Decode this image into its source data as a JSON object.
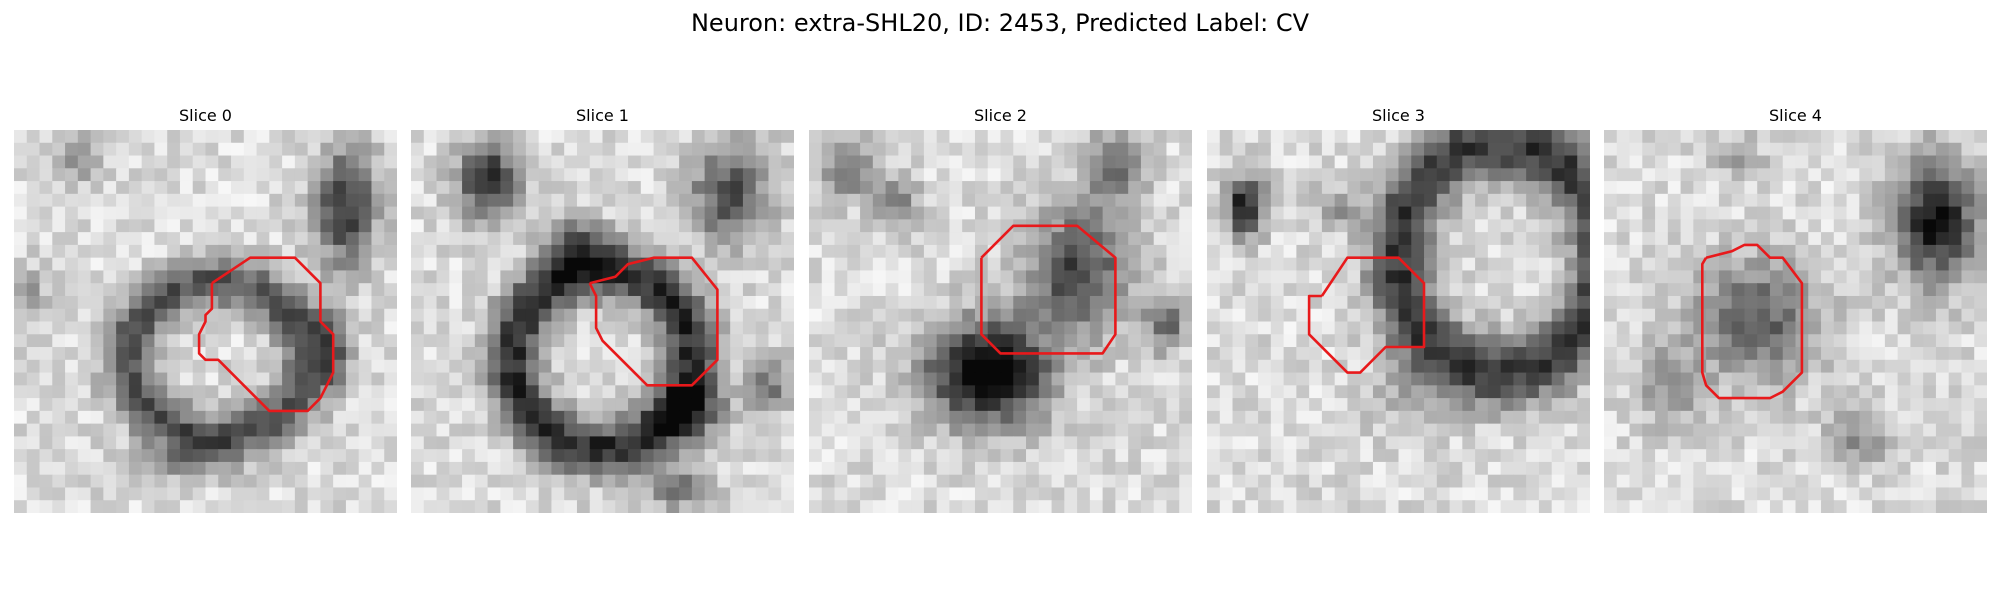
{
  "figure": {
    "title": "Neuron: extra-SHL20, ID: 2453, Predicted Label: CV",
    "contour_color": "#e8191b"
  },
  "panels": [
    {
      "title": "Slice 0"
    },
    {
      "title": "Slice 1"
    },
    {
      "title": "Slice 2"
    },
    {
      "title": "Slice 3"
    },
    {
      "title": "Slice 4"
    }
  ]
}
